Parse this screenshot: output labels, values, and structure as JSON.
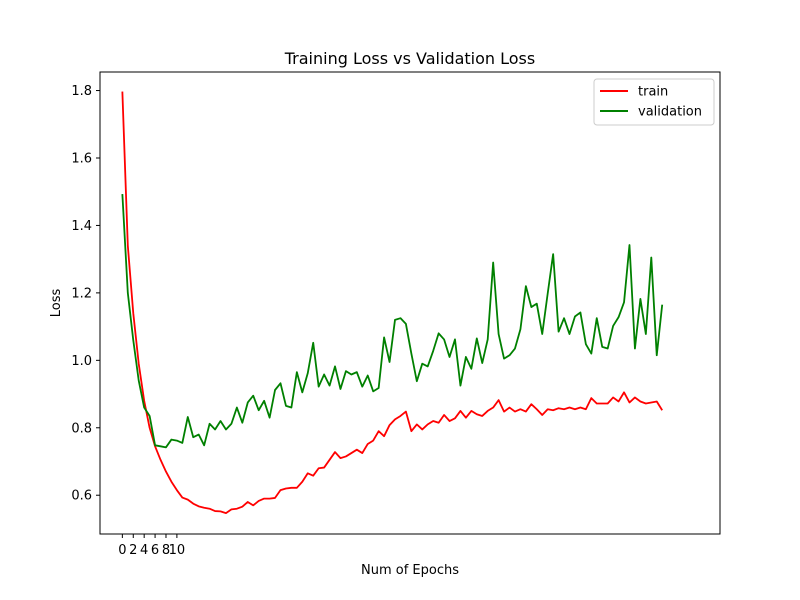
{
  "chart_data": {
    "type": "line",
    "title": "Training Loss vs Validation Loss",
    "xlabel": "Num of Epochs",
    "ylabel": "Loss",
    "xticks": [
      0,
      2,
      4,
      6,
      8,
      10
    ],
    "yticks": [
      0.6,
      0.8,
      1.0,
      1.2,
      1.4,
      1.6,
      1.8
    ],
    "ytick_labels": [
      "0.6",
      "0.8",
      "1.0",
      "1.2",
      "1.4",
      "1.6",
      "1.8"
    ],
    "xlim": [
      -4.1,
      109.6
    ],
    "ylim": [
      0.485,
      1.855
    ],
    "grid": false,
    "legend_position": "upper right",
    "series": [
      {
        "name": "train",
        "color": "#ff0000",
        "values": [
          1.797,
          1.34,
          1.14,
          0.99,
          0.88,
          0.8,
          0.745,
          0.705,
          0.67,
          0.64,
          0.615,
          0.593,
          0.587,
          0.575,
          0.567,
          0.563,
          0.56,
          0.553,
          0.552,
          0.547,
          0.558,
          0.56,
          0.566,
          0.58,
          0.57,
          0.583,
          0.59,
          0.59,
          0.592,
          0.615,
          0.62,
          0.622,
          0.622,
          0.64,
          0.665,
          0.658,
          0.68,
          0.682,
          0.705,
          0.728,
          0.71,
          0.715,
          0.725,
          0.735,
          0.725,
          0.752,
          0.762,
          0.79,
          0.775,
          0.808,
          0.825,
          0.835,
          0.848,
          0.79,
          0.81,
          0.795,
          0.81,
          0.82,
          0.815,
          0.838,
          0.82,
          0.828,
          0.85,
          0.83,
          0.85,
          0.84,
          0.835,
          0.85,
          0.86,
          0.882,
          0.848,
          0.86,
          0.848,
          0.855,
          0.848,
          0.87,
          0.855,
          0.838,
          0.855,
          0.852,
          0.858,
          0.855,
          0.86,
          0.855,
          0.86,
          0.855,
          0.888,
          0.872,
          0.872,
          0.872,
          0.89,
          0.878,
          0.905,
          0.875,
          0.89,
          0.878,
          0.872,
          0.875,
          0.878,
          0.852
        ]
      },
      {
        "name": "validation",
        "color": "#008000",
        "values": [
          1.493,
          1.2,
          1.06,
          0.94,
          0.86,
          0.835,
          0.748,
          0.745,
          0.742,
          0.765,
          0.762,
          0.755,
          0.832,
          0.772,
          0.78,
          0.748,
          0.812,
          0.795,
          0.82,
          0.795,
          0.812,
          0.86,
          0.815,
          0.875,
          0.895,
          0.852,
          0.88,
          0.83,
          0.912,
          0.932,
          0.865,
          0.86,
          0.965,
          0.905,
          0.962,
          1.052,
          0.922,
          0.958,
          0.925,
          0.982,
          0.915,
          0.968,
          0.958,
          0.965,
          0.922,
          0.955,
          0.908,
          0.918,
          1.068,
          0.995,
          1.12,
          1.125,
          1.108,
          1.02,
          0.938,
          0.99,
          0.982,
          1.028,
          1.08,
          1.062,
          1.01,
          1.062,
          0.925,
          1.01,
          0.975,
          1.065,
          0.992,
          1.062,
          1.29,
          1.078,
          1.005,
          1.015,
          1.035,
          1.092,
          1.22,
          1.158,
          1.168,
          1.078,
          1.198,
          1.315,
          1.085,
          1.125,
          1.078,
          1.13,
          1.142,
          1.048,
          1.02,
          1.125,
          1.04,
          1.035,
          1.102,
          1.128,
          1.172,
          1.342,
          1.035,
          1.182,
          1.078,
          1.305,
          1.015,
          1.165
        ]
      }
    ]
  }
}
